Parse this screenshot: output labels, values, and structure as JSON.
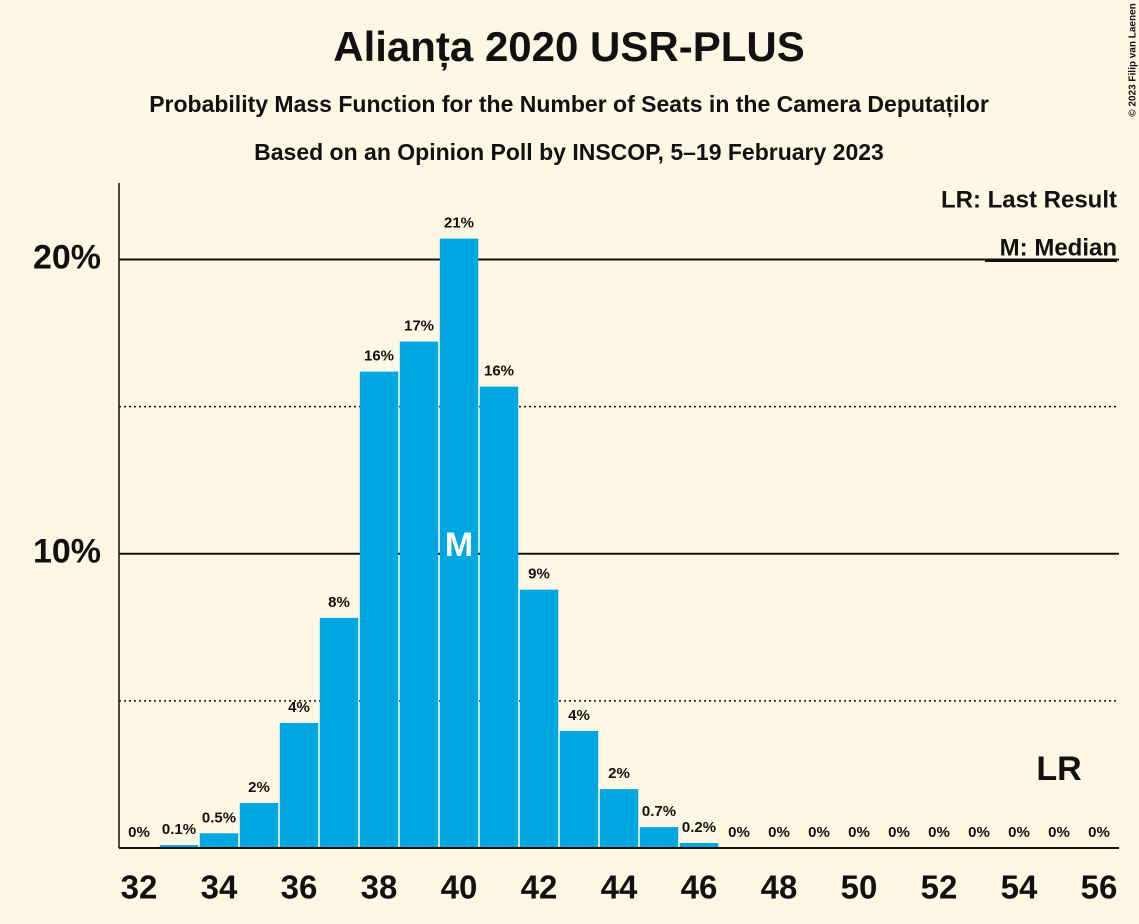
{
  "chart_data": {
    "type": "bar",
    "title": "Alianța 2020 USR-PLUS",
    "subtitle": "Probability Mass Function for the Number of Seats in the Camera Deputaților",
    "subtitle2": "Based on an Opinion Poll by INSCOP, 5–19 February 2023",
    "copyright": "© 2023 Filip van Laenen",
    "legend": [
      "LR: Last Result",
      "M: Median"
    ],
    "median": 40,
    "median_label": "M",
    "last_result": 55,
    "last_result_label": "LR",
    "x": [
      32,
      33,
      34,
      35,
      36,
      37,
      38,
      39,
      40,
      41,
      42,
      43,
      44,
      45,
      46,
      47,
      48,
      49,
      50,
      51,
      52,
      53,
      54,
      55,
      56
    ],
    "values": [
      0,
      0.1,
      0.5,
      1.53,
      4.25,
      7.82,
      16.19,
      17.21,
      20.71,
      15.68,
      8.78,
      3.98,
      2.0,
      0.71,
      0.17,
      0,
      0,
      0,
      0,
      0,
      0,
      0,
      0,
      0,
      0
    ],
    "value_labels": [
      "0%",
      "0.1%",
      "0.5%",
      "2%",
      "4%",
      "8%",
      "16%",
      "17%",
      "21%",
      "16%",
      "9%",
      "4%",
      "2%",
      "0.7%",
      "0.2%",
      "0%",
      "0%",
      "0%",
      "0%",
      "0%",
      "0%",
      "0%",
      "0%",
      "0%",
      "0%"
    ],
    "color": "#00a7e1",
    "xlim": [
      31.5,
      56.5
    ],
    "xticks": [
      32,
      34,
      36,
      38,
      40,
      42,
      44,
      46,
      48,
      50,
      52,
      54,
      56
    ],
    "ylim": [
      0,
      22.6
    ],
    "yticks": [
      {
        "value": 10,
        "label": "10%"
      },
      {
        "value": 20,
        "label": "20%"
      }
    ],
    "minor_yticks": [
      5,
      15
    ],
    "grid": true
  }
}
